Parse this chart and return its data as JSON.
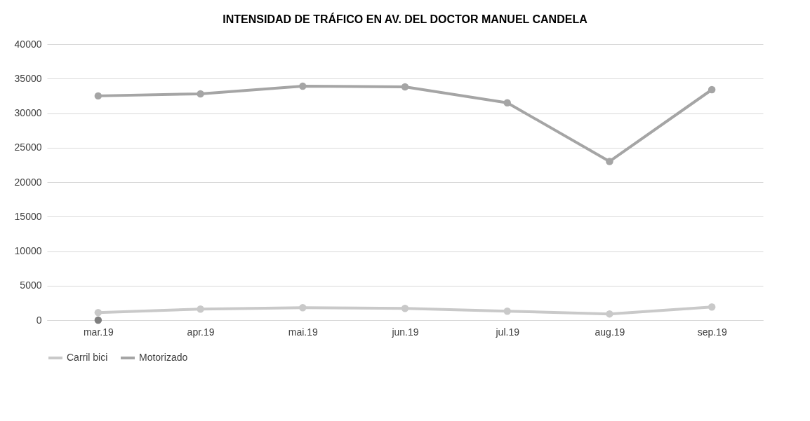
{
  "chart_data": {
    "type": "line",
    "title": "INTENSIDAD DE TRÁFICO EN AV. DEL DOCTOR MANUEL CANDELA",
    "categories": [
      "mar.19",
      "apr.19",
      "mai.19",
      "jun.19",
      "jul.19",
      "aug.19",
      "sep.19"
    ],
    "series": [
      {
        "name": "Carril bici",
        "color": "#c9c9c9",
        "values": [
          1100,
          1600,
          1800,
          1700,
          1300,
          900,
          1900
        ]
      },
      {
        "name": "Motorizado",
        "color": "#a5a5a5",
        "values": [
          32500,
          32800,
          33900,
          33800,
          31500,
          23000,
          33400
        ]
      },
      {
        "type": "scatter",
        "color": "#7f7f7f",
        "values": [
          0,
          null,
          null,
          null,
          null,
          null,
          null
        ]
      }
    ],
    "ylim": [
      0,
      40000
    ],
    "yticks": [
      0,
      5000,
      10000,
      15000,
      20000,
      25000,
      30000,
      35000,
      40000
    ],
    "grid": "y",
    "legend": "bottom",
    "marker": "circle",
    "line_style": "solid"
  }
}
